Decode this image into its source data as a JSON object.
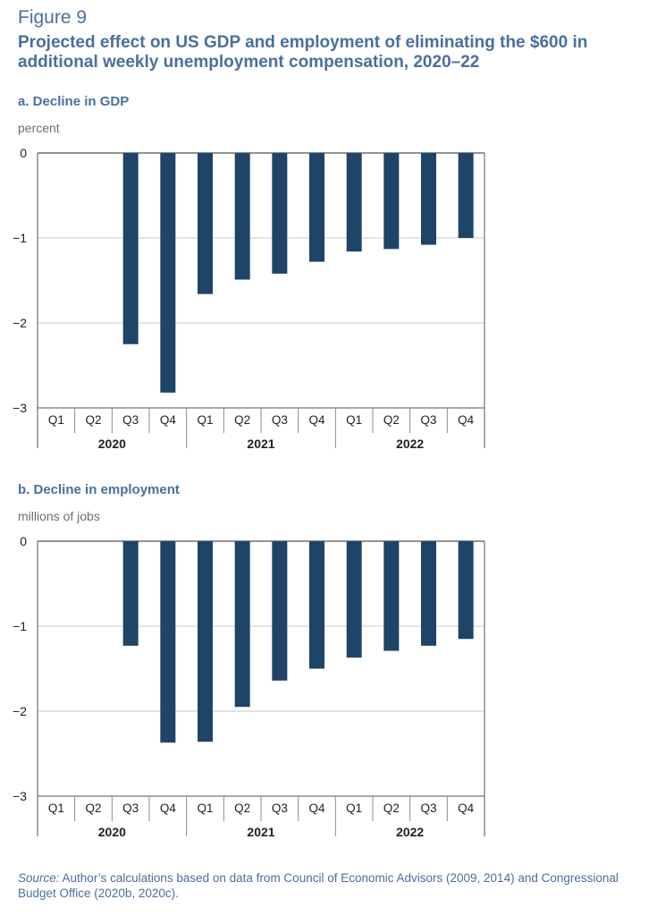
{
  "figure": {
    "label": "Figure 9",
    "title": "Projected effect on US GDP and employment of eliminating the $600 in additional weekly unemployment compensation, 2020–22"
  },
  "panels": [
    {
      "title": "a. Decline in GDP",
      "unit": "percent"
    },
    {
      "title": "b. Decline in employment",
      "unit": "millions of jobs"
    }
  ],
  "chart_data": [
    {
      "type": "bar",
      "title": "a. Decline in GDP",
      "ylabel": "percent",
      "categories": [
        "Q1",
        "Q2",
        "Q3",
        "Q4",
        "Q1",
        "Q2",
        "Q3",
        "Q4",
        "Q1",
        "Q2",
        "Q3",
        "Q4"
      ],
      "groups": [
        {
          "label": "2020",
          "span": 4
        },
        {
          "label": "2021",
          "span": 4
        },
        {
          "label": "2022",
          "span": 4
        }
      ],
      "values": [
        null,
        null,
        -2.25,
        -2.82,
        -1.66,
        -1.49,
        -1.42,
        -1.28,
        -1.16,
        -1.13,
        -1.08,
        -1.0
      ],
      "ylim": [
        -3,
        0
      ],
      "yticks": [
        0,
        -1,
        -2,
        -3
      ],
      "grid": true,
      "color": "#1e4468"
    },
    {
      "type": "bar",
      "title": "b. Decline in employment",
      "ylabel": "millions of jobs",
      "categories": [
        "Q1",
        "Q2",
        "Q3",
        "Q4",
        "Q1",
        "Q2",
        "Q3",
        "Q4",
        "Q1",
        "Q2",
        "Q3",
        "Q4"
      ],
      "groups": [
        {
          "label": "2020",
          "span": 4
        },
        {
          "label": "2021",
          "span": 4
        },
        {
          "label": "2022",
          "span": 4
        }
      ],
      "values": [
        null,
        null,
        -1.23,
        -2.37,
        -2.36,
        -1.95,
        -1.64,
        -1.5,
        -1.37,
        -1.29,
        -1.23,
        -1.15
      ],
      "ylim": [
        -3,
        0
      ],
      "yticks": [
        0,
        -1,
        -2,
        -3
      ],
      "grid": true,
      "color": "#1e4468"
    }
  ],
  "source": {
    "prefix": "Source:",
    "text": " Author’s calculations based on data from Council of Economic Advisors (2009, 2014) and Congressional Budget Office (2020b, 2020c)."
  }
}
